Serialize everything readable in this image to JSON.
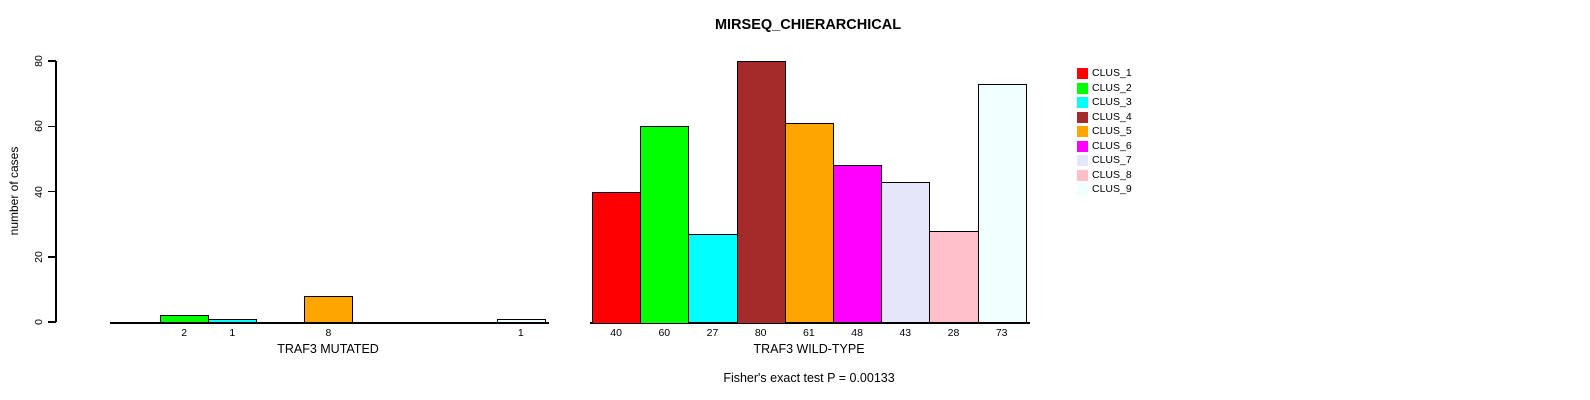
{
  "chart_data": {
    "type": "bar",
    "title": "MIRSEQ_CHIERARCHICAL",
    "ylabel": "number of cases",
    "ylim": [
      0,
      80
    ],
    "yticks": [
      0,
      20,
      40,
      60,
      80
    ],
    "grid": false,
    "legend_position": "right-top",
    "clusters": [
      "CLUS_1",
      "CLUS_2",
      "CLUS_3",
      "CLUS_4",
      "CLUS_5",
      "CLUS_6",
      "CLUS_7",
      "CLUS_8",
      "CLUS_9"
    ],
    "colors": [
      "#FF0000",
      "#00FF00",
      "#00FFFF",
      "#A52A2A",
      "#FFA500",
      "#FF00FF",
      "#E6E6FA",
      "#FFC0CB",
      "#F0FFFF"
    ],
    "bar_border_color": "#000000",
    "groups": [
      {
        "xlabel": "TRAF3 MUTATED",
        "values": [
          0,
          2,
          1,
          0,
          8,
          0,
          0,
          0,
          1
        ],
        "bar_labels": [
          "",
          "2",
          "1",
          "",
          "8",
          "",
          "",
          "",
          "1"
        ]
      },
      {
        "xlabel": "TRAF3 WILD-TYPE",
        "values": [
          40,
          60,
          27,
          80,
          61,
          48,
          43,
          28,
          73
        ],
        "bar_labels": [
          "40",
          "60",
          "27",
          "80",
          "61",
          "48",
          "43",
          "28",
          "73"
        ]
      }
    ],
    "annotation": "Fisher's exact test P = 0.00133"
  }
}
